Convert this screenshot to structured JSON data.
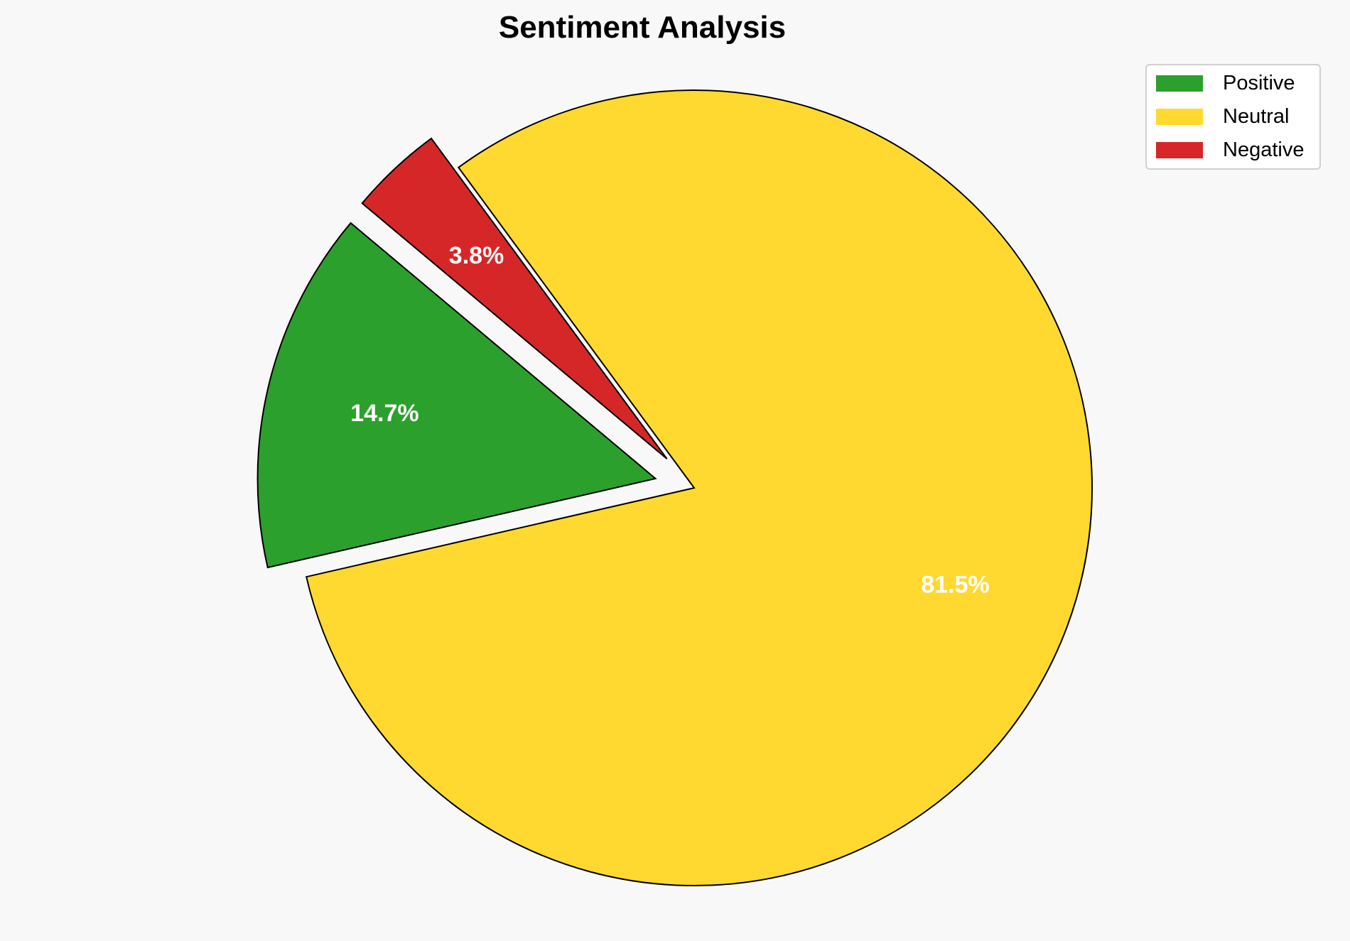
{
  "chart_data": {
    "type": "pie",
    "title": "Sentiment Analysis",
    "categories": [
      "Positive",
      "Neutral",
      "Negative"
    ],
    "values": [
      14.7,
      81.5,
      3.8
    ],
    "labels": [
      "14.7%",
      "81.5%",
      "3.8%"
    ],
    "colors": [
      "#2ca02c",
      "#ffd92f",
      "#d62728"
    ],
    "explode": [
      0.1,
      0,
      0.1
    ],
    "start_angle": 140,
    "direction": "counterclockwise",
    "legend_placement": "top-right"
  }
}
